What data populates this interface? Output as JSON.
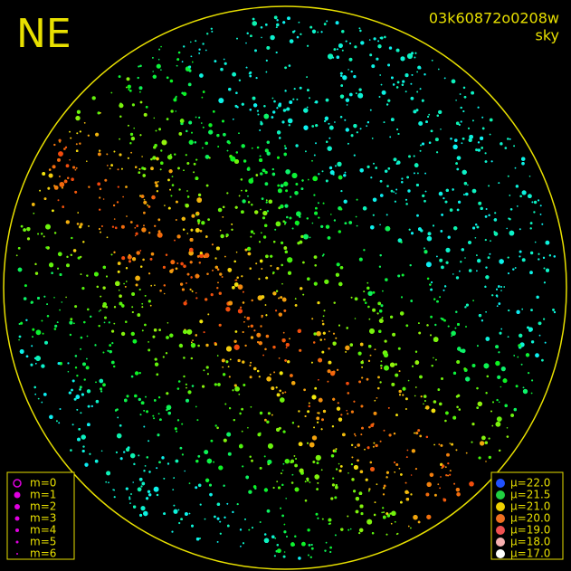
{
  "header": {
    "label": "NE",
    "id": "03k60872o0208w",
    "subtitle": "sky"
  },
  "magnitude_legend": {
    "color": "#e000e0",
    "items": [
      "m=0",
      "m=1",
      "m=2",
      "m=3",
      "m=4",
      "m=5",
      "m=6"
    ]
  },
  "sky_legend": {
    "items": [
      {
        "label": "μ=22.0",
        "color": "#2050ff"
      },
      {
        "label": "μ=21.5",
        "color": "#20d040"
      },
      {
        "label": "μ=21.0",
        "color": "#f0d000"
      },
      {
        "label": "μ=20.0",
        "color": "#f07020"
      },
      {
        "label": "μ=19.0",
        "color": "#f05050"
      },
      {
        "label": "μ=18.0",
        "color": "#f8b0b0"
      },
      {
        "label": "μ=17.0",
        "color": "#ffffff"
      }
    ]
  }
}
